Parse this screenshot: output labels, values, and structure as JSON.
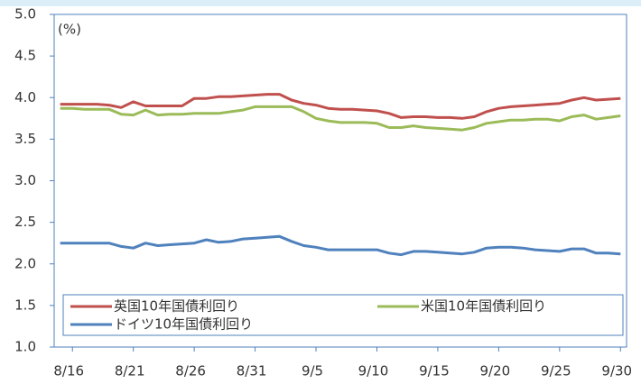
{
  "chart_data": {
    "type": "line",
    "annotation": "(%)",
    "categories": [
      null,
      "8/16",
      null,
      null,
      null,
      null,
      "8/21",
      null,
      null,
      null,
      null,
      "8/26",
      null,
      null,
      null,
      null,
      "8/31",
      null,
      null,
      null,
      null,
      "9/5",
      null,
      null,
      null,
      null,
      "9/10",
      null,
      null,
      null,
      null,
      "9/15",
      null,
      null,
      null,
      null,
      "9/20",
      null,
      null,
      null,
      null,
      "9/25",
      null,
      null,
      null,
      null,
      "9/30"
    ],
    "series": [
      {
        "name": "英国10年国債利回り",
        "color": "#c0504d",
        "values": [
          3.92,
          3.92,
          3.92,
          3.92,
          3.91,
          3.88,
          3.95,
          3.9,
          3.9,
          3.9,
          3.9,
          3.99,
          3.99,
          4.01,
          4.01,
          4.02,
          4.03,
          4.04,
          4.04,
          3.97,
          3.93,
          3.91,
          3.87,
          3.86,
          3.86,
          3.85,
          3.84,
          3.81,
          3.76,
          3.77,
          3.77,
          3.76,
          3.76,
          3.75,
          3.77,
          3.83,
          3.87,
          3.89,
          3.9,
          3.91,
          3.92,
          3.93,
          3.97,
          4.0,
          3.97,
          3.98,
          3.99
        ]
      },
      {
        "name": "米国10年国債利回り",
        "color": "#9bbb59",
        "values": [
          3.87,
          3.87,
          3.86,
          3.86,
          3.86,
          3.8,
          3.79,
          3.85,
          3.79,
          3.8,
          3.8,
          3.81,
          3.81,
          3.81,
          3.83,
          3.85,
          3.89,
          3.89,
          3.89,
          3.89,
          3.83,
          3.75,
          3.72,
          3.7,
          3.7,
          3.7,
          3.69,
          3.64,
          3.64,
          3.66,
          3.64,
          3.63,
          3.62,
          3.61,
          3.64,
          3.69,
          3.71,
          3.73,
          3.73,
          3.74,
          3.74,
          3.72,
          3.77,
          3.79,
          3.74,
          3.76,
          3.78
        ]
      },
      {
        "name": "ドイツ10年国債利回り",
        "color": "#4f81bd",
        "values": [
          2.25,
          2.25,
          2.25,
          2.25,
          2.25,
          2.21,
          2.19,
          2.25,
          2.22,
          2.23,
          2.24,
          2.25,
          2.29,
          2.26,
          2.27,
          2.3,
          2.31,
          2.32,
          2.33,
          2.27,
          2.22,
          2.2,
          2.17,
          2.17,
          2.17,
          2.17,
          2.17,
          2.13,
          2.11,
          2.15,
          2.15,
          2.14,
          2.13,
          2.12,
          2.14,
          2.19,
          2.2,
          2.2,
          2.19,
          2.17,
          2.16,
          2.15,
          2.18,
          2.18,
          2.13,
          2.13,
          2.12
        ]
      }
    ],
    "ylim": [
      1.0,
      5.0
    ],
    "yticks": [
      {
        "value": 1.0,
        "label": "1.0"
      },
      1.5,
      {
        "value": 2.0,
        "label": "2.0"
      },
      2.5,
      {
        "value": 3.0,
        "label": "3.0"
      },
      3.5,
      {
        "value": 4.0,
        "label": "4.0"
      },
      4.5,
      {
        "value": 5.0,
        "label": "5.0"
      }
    ],
    "grid": false,
    "legend": "bottom"
  }
}
